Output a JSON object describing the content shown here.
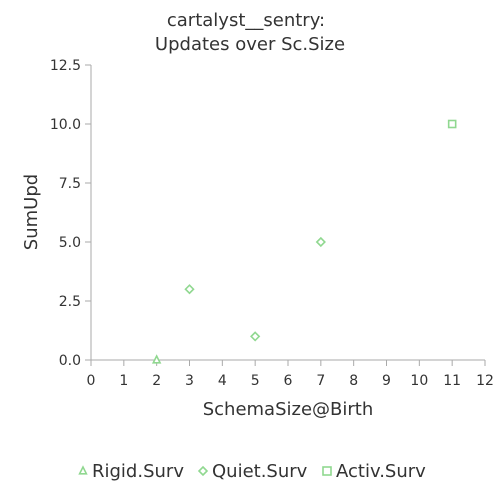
{
  "chart_data": {
    "type": "scatter",
    "title_lines": [
      "cartalyst__sentry:",
      "Updates over Sc.Size"
    ],
    "xlabel": "SchemaSize@Birth",
    "ylabel": "SumUpd",
    "xlim": [
      0,
      12
    ],
    "ylim": [
      0,
      12.5
    ],
    "x_ticks": [
      0,
      1,
      2,
      3,
      4,
      5,
      6,
      7,
      8,
      9,
      10,
      11,
      12
    ],
    "y_ticks": [
      0,
      2.5,
      5,
      7.5,
      10,
      12.5
    ],
    "x_tick_labels": [
      "0",
      "1",
      "2",
      "3",
      "4",
      "5",
      "6",
      "7",
      "8",
      "9",
      "10",
      "11",
      "12"
    ],
    "y_tick_labels": [
      "0.0",
      "2.5",
      "5.0",
      "7.5",
      "10.0",
      "12.5"
    ],
    "grid": false,
    "legend_position": "bottom",
    "series": [
      {
        "name": "Rigid.Surv",
        "marker": "triangle",
        "color": "#90d890",
        "points": [
          {
            "x": 2,
            "y": 0
          }
        ]
      },
      {
        "name": "Quiet.Surv",
        "marker": "diamond",
        "color": "#90d890",
        "points": [
          {
            "x": 3,
            "y": 3
          },
          {
            "x": 5,
            "y": 1
          },
          {
            "x": 7,
            "y": 5
          }
        ]
      },
      {
        "name": "Activ.Surv",
        "marker": "square",
        "color": "#90d890",
        "points": [
          {
            "x": 11,
            "y": 10
          }
        ]
      }
    ]
  }
}
